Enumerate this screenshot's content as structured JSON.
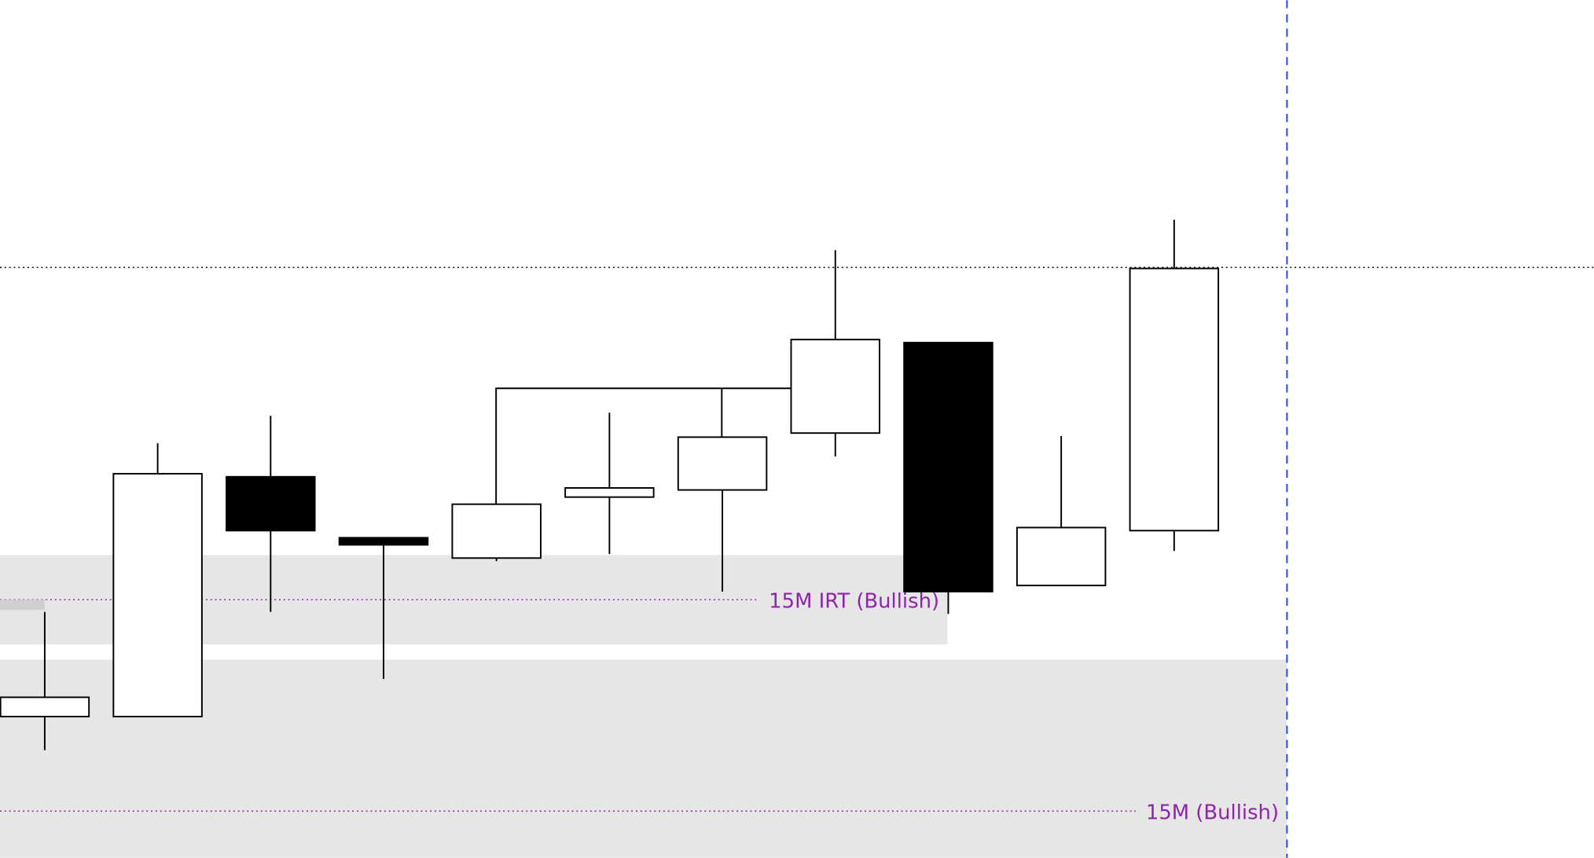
{
  "chart_data": {
    "type": "candlestick",
    "open": [
      139,
      139,
      375,
      315,
      295,
      355,
      362,
      418,
      507,
      268,
      322
    ],
    "high": [
      242,
      408,
      435,
      315,
      348,
      438,
      414,
      598,
      507,
      415,
      628
    ],
    "low": [
      106,
      139,
      242,
      176,
      292,
      299,
      262,
      395,
      240,
      268,
      302
    ],
    "close": [
      158,
      378,
      322,
      308,
      348,
      364,
      414,
      510,
      262,
      325,
      580
    ],
    "up_color": "#ffffff",
    "down_color": "#000000",
    "ylim": [
      0,
      844
    ],
    "reference_line": 581,
    "zones": [
      {
        "label": "15M IRT (Bullish)",
        "top": 298,
        "bottom": 210,
        "level": 254,
        "color": "#8e24aa"
      },
      {
        "label": "15M (Bullish)",
        "top": 195,
        "bottom": 0,
        "level": 46,
        "color": "#8e24aa"
      }
    ]
  }
}
